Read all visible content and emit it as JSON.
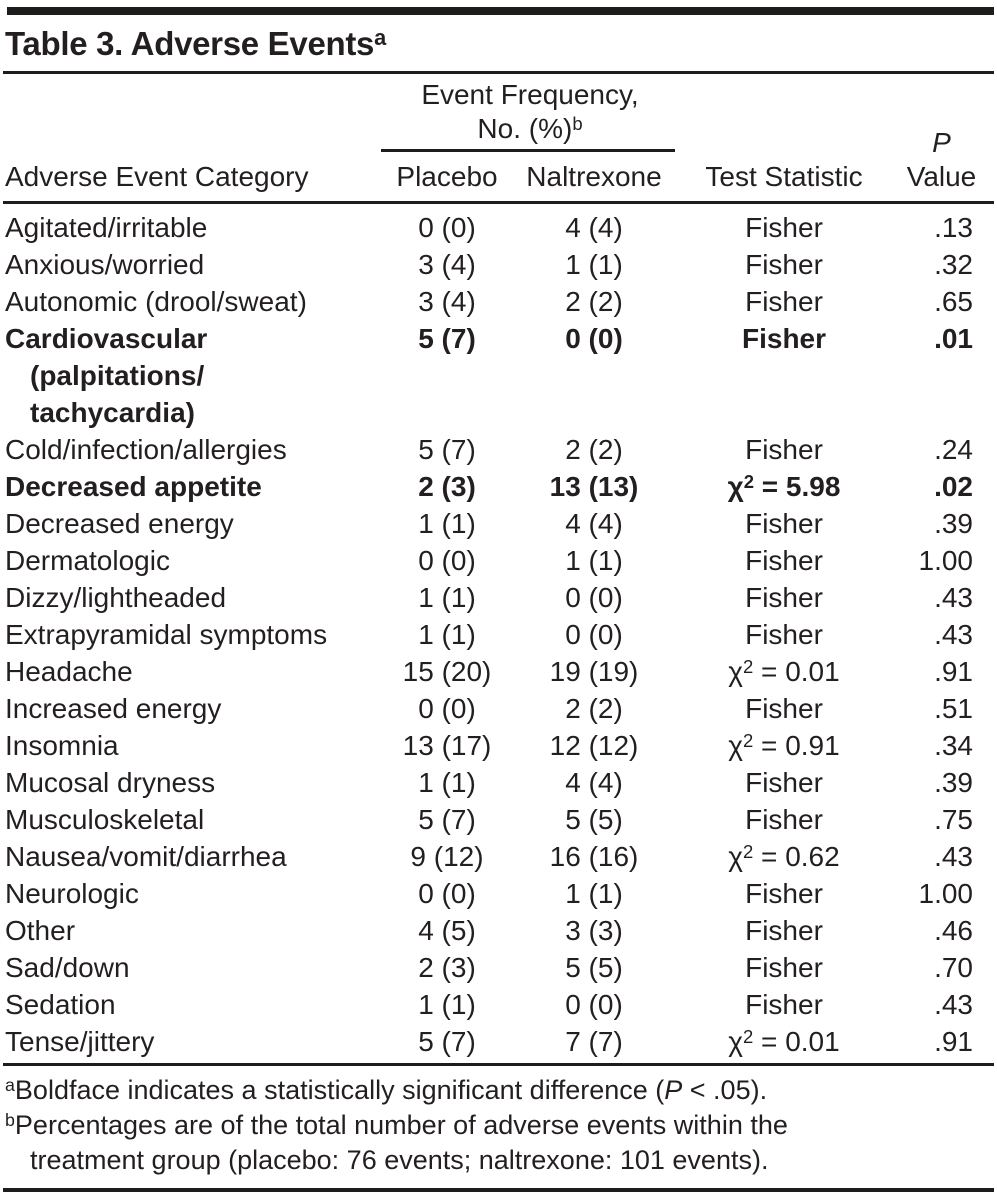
{
  "title": {
    "text": "Table 3. Adverse Events",
    "sup": "a"
  },
  "header": {
    "category": "Adverse Event Category",
    "spanner_line1": "Event Frequency,",
    "spanner_line2": "No. (%)",
    "spanner_sup": "b",
    "col_placebo": "Placebo",
    "col_naltrexone": "Naltrexone",
    "col_test": "Test Statistic",
    "col_p_line1": "P",
    "col_p_line2": "Value"
  },
  "rows": [
    {
      "category": "Agitated/irritable",
      "placebo": "0 (0)",
      "naltrexone": "4 (4)",
      "test": "Fisher",
      "p": ".13",
      "bold": false
    },
    {
      "category": "Anxious/worried",
      "placebo": "3 (4)",
      "naltrexone": "1 (1)",
      "test": "Fisher",
      "p": ".32",
      "bold": false
    },
    {
      "category": "Autonomic (drool/sweat)",
      "placebo": "3 (4)",
      "naltrexone": "2 (2)",
      "test": "Fisher",
      "p": ".65",
      "bold": false
    },
    {
      "category": "Cardiovascular\n(palpitations/\ntachycardia)",
      "placebo": "5 (7)",
      "naltrexone": "0 (0)",
      "test": "Fisher",
      "p": ".01",
      "bold": true
    },
    {
      "category": "Cold/infection/allergies",
      "placebo": "5 (7)",
      "naltrexone": "2 (2)",
      "test": "Fisher",
      "p": ".24",
      "bold": false
    },
    {
      "category": "Decreased appetite",
      "placebo": "2 (3)",
      "naltrexone": "13 (13)",
      "test": "χ2 = 5.98",
      "p": ".02",
      "bold": true
    },
    {
      "category": "Decreased energy",
      "placebo": "1 (1)",
      "naltrexone": "4 (4)",
      "test": "Fisher",
      "p": ".39",
      "bold": false
    },
    {
      "category": "Dermatologic",
      "placebo": "0 (0)",
      "naltrexone": "1 (1)",
      "test": "Fisher",
      "p": "1.00",
      "bold": false
    },
    {
      "category": "Dizzy/lightheaded",
      "placebo": "1 (1)",
      "naltrexone": "0 (0)",
      "test": "Fisher",
      "p": ".43",
      "bold": false
    },
    {
      "category": "Extrapyramidal symptoms",
      "placebo": "1 (1)",
      "naltrexone": "0 (0)",
      "test": "Fisher",
      "p": ".43",
      "bold": false
    },
    {
      "category": "Headache",
      "placebo": "15 (20)",
      "naltrexone": "19 (19)",
      "test": "χ2 = 0.01",
      "p": ".91",
      "bold": false
    },
    {
      "category": "Increased energy",
      "placebo": "0 (0)",
      "naltrexone": "2 (2)",
      "test": "Fisher",
      "p": ".51",
      "bold": false
    },
    {
      "category": "Insomnia",
      "placebo": "13 (17)",
      "naltrexone": "12 (12)",
      "test": "χ2 = 0.91",
      "p": ".34",
      "bold": false
    },
    {
      "category": "Mucosal dryness",
      "placebo": "1 (1)",
      "naltrexone": "4 (4)",
      "test": "Fisher",
      "p": ".39",
      "bold": false
    },
    {
      "category": "Musculoskeletal",
      "placebo": "5 (7)",
      "naltrexone": "5 (5)",
      "test": "Fisher",
      "p": ".75",
      "bold": false
    },
    {
      "category": "Nausea/vomit/diarrhea",
      "placebo": "9 (12)",
      "naltrexone": "16 (16)",
      "test": "χ2 = 0.62",
      "p": ".43",
      "bold": false
    },
    {
      "category": "Neurologic",
      "placebo": "0 (0)",
      "naltrexone": "1 (1)",
      "test": "Fisher",
      "p": "1.00",
      "bold": false
    },
    {
      "category": "Other",
      "placebo": "4 (5)",
      "naltrexone": "3 (3)",
      "test": "Fisher",
      "p": ".46",
      "bold": false
    },
    {
      "category": "Sad/down",
      "placebo": "2 (3)",
      "naltrexone": "5 (5)",
      "test": "Fisher",
      "p": ".70",
      "bold": false
    },
    {
      "category": "Sedation",
      "placebo": "1 (1)",
      "naltrexone": "0 (0)",
      "test": "Fisher",
      "p": ".43",
      "bold": false
    },
    {
      "category": "Tense/jittery",
      "placebo": "5 (7)",
      "naltrexone": "7 (7)",
      "test": "χ2 = 0.01",
      "p": ".91",
      "bold": false
    }
  ],
  "footnotes": [
    {
      "sup": "a",
      "parts": [
        {
          "text": "Boldface indicates a statistically significant difference ("
        },
        {
          "text": "P",
          "italic": true
        },
        {
          "text": " < .05)."
        }
      ]
    },
    {
      "sup": "b",
      "parts": [
        {
          "text": "Percentages are of the total number of adverse events within the\ntreatment group (placebo: 76 events; naltrexone: 101 events)."
        }
      ]
    }
  ],
  "colors": {
    "text": "#231f20",
    "rule": "#1d1d1b",
    "background": "#ffffff"
  }
}
